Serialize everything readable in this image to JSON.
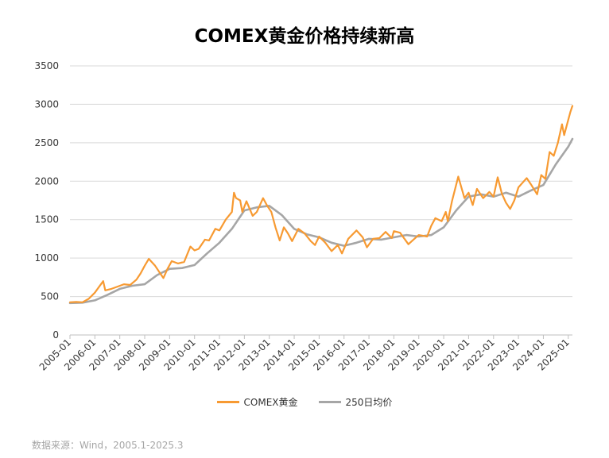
{
  "chart_data": {
    "type": "line",
    "title": "COMEX黄金价格持续新高",
    "ylim": [
      0,
      3500
    ],
    "yticks": [
      0,
      500,
      1000,
      1500,
      2000,
      2500,
      3000,
      3500
    ],
    "x_range": [
      "2005-01",
      "2025-03"
    ],
    "xticks": [
      "2005-01",
      "2006-01",
      "2007-01",
      "2008-01",
      "2009-01",
      "2010-01",
      "2011-01",
      "2012-01",
      "2013-01",
      "2014-01",
      "2015-01",
      "2016-01",
      "2017-01",
      "2018-01",
      "2019-01",
      "2020-01",
      "2021-01",
      "2022-01",
      "2023-01",
      "2024-01",
      "2025-01"
    ],
    "grid": true,
    "legend_position": "bottom",
    "series": [
      {
        "name": "COMEX黄金",
        "color": "#f79a32",
        "points": [
          [
            "2005-01",
            425
          ],
          [
            "2005-04",
            430
          ],
          [
            "2005-07",
            425
          ],
          [
            "2005-10",
            470
          ],
          [
            "2006-01",
            550
          ],
          [
            "2006-05",
            700
          ],
          [
            "2006-06",
            580
          ],
          [
            "2006-09",
            600
          ],
          [
            "2006-12",
            630
          ],
          [
            "2007-03",
            660
          ],
          [
            "2007-06",
            650
          ],
          [
            "2007-09",
            720
          ],
          [
            "2007-11",
            800
          ],
          [
            "2008-01",
            900
          ],
          [
            "2008-03",
            990
          ],
          [
            "2008-06",
            900
          ],
          [
            "2008-08",
            820
          ],
          [
            "2008-10",
            740
          ],
          [
            "2008-12",
            860
          ],
          [
            "2009-02",
            960
          ],
          [
            "2009-05",
            930
          ],
          [
            "2009-08",
            950
          ],
          [
            "2009-11",
            1150
          ],
          [
            "2010-01",
            1100
          ],
          [
            "2010-03",
            1120
          ],
          [
            "2010-06",
            1240
          ],
          [
            "2010-08",
            1230
          ],
          [
            "2010-11",
            1380
          ],
          [
            "2011-01",
            1360
          ],
          [
            "2011-04",
            1500
          ],
          [
            "2011-07",
            1600
          ],
          [
            "2011-08",
            1850
          ],
          [
            "2011-09",
            1780
          ],
          [
            "2011-11",
            1750
          ],
          [
            "2011-12",
            1600
          ],
          [
            "2012-02",
            1740
          ],
          [
            "2012-05",
            1550
          ],
          [
            "2012-07",
            1600
          ],
          [
            "2012-10",
            1780
          ],
          [
            "2012-12",
            1680
          ],
          [
            "2013-02",
            1600
          ],
          [
            "2013-04",
            1400
          ],
          [
            "2013-06",
            1230
          ],
          [
            "2013-08",
            1400
          ],
          [
            "2013-10",
            1320
          ],
          [
            "2013-12",
            1220
          ],
          [
            "2014-03",
            1380
          ],
          [
            "2014-06",
            1320
          ],
          [
            "2014-09",
            1220
          ],
          [
            "2014-11",
            1170
          ],
          [
            "2015-01",
            1280
          ],
          [
            "2015-04",
            1200
          ],
          [
            "2015-07",
            1090
          ],
          [
            "2015-10",
            1170
          ],
          [
            "2015-12",
            1060
          ],
          [
            "2016-03",
            1250
          ],
          [
            "2016-07",
            1360
          ],
          [
            "2016-10",
            1270
          ],
          [
            "2016-12",
            1140
          ],
          [
            "2017-03",
            1250
          ],
          [
            "2017-06",
            1260
          ],
          [
            "2017-09",
            1340
          ],
          [
            "2017-12",
            1260
          ],
          [
            "2018-01",
            1350
          ],
          [
            "2018-04",
            1330
          ],
          [
            "2018-08",
            1180
          ],
          [
            "2018-10",
            1230
          ],
          [
            "2019-01",
            1300
          ],
          [
            "2019-05",
            1280
          ],
          [
            "2019-07",
            1420
          ],
          [
            "2019-09",
            1520
          ],
          [
            "2019-12",
            1480
          ],
          [
            "2020-02",
            1600
          ],
          [
            "2020-03",
            1480
          ],
          [
            "2020-05",
            1740
          ],
          [
            "2020-08",
            2060
          ],
          [
            "2020-11",
            1780
          ],
          [
            "2021-01",
            1850
          ],
          [
            "2021-03",
            1690
          ],
          [
            "2021-05",
            1900
          ],
          [
            "2021-08",
            1780
          ],
          [
            "2021-11",
            1860
          ],
          [
            "2022-01",
            1800
          ],
          [
            "2022-03",
            2050
          ],
          [
            "2022-05",
            1840
          ],
          [
            "2022-07",
            1720
          ],
          [
            "2022-09",
            1640
          ],
          [
            "2022-11",
            1750
          ],
          [
            "2023-01",
            1920
          ],
          [
            "2023-03",
            1980
          ],
          [
            "2023-05",
            2040
          ],
          [
            "2023-07",
            1960
          ],
          [
            "2023-10",
            1830
          ],
          [
            "2023-12",
            2080
          ],
          [
            "2024-02",
            2030
          ],
          [
            "2024-04",
            2380
          ],
          [
            "2024-06",
            2330
          ],
          [
            "2024-08",
            2500
          ],
          [
            "2024-10",
            2740
          ],
          [
            "2024-11",
            2600
          ],
          [
            "2025-01",
            2800
          ],
          [
            "2025-02",
            2900
          ],
          [
            "2025-03",
            2980
          ]
        ]
      },
      {
        "name": "250日均价",
        "color": "#a6a6a6",
        "points": [
          [
            "2005-01",
            415
          ],
          [
            "2005-07",
            420
          ],
          [
            "2006-01",
            450
          ],
          [
            "2006-07",
            520
          ],
          [
            "2007-01",
            600
          ],
          [
            "2007-07",
            640
          ],
          [
            "2008-01",
            660
          ],
          [
            "2008-07",
            780
          ],
          [
            "2009-01",
            860
          ],
          [
            "2009-07",
            870
          ],
          [
            "2010-01",
            910
          ],
          [
            "2010-07",
            1060
          ],
          [
            "2011-01",
            1200
          ],
          [
            "2011-07",
            1380
          ],
          [
            "2012-01",
            1620
          ],
          [
            "2012-07",
            1660
          ],
          [
            "2013-01",
            1680
          ],
          [
            "2013-07",
            1560
          ],
          [
            "2014-01",
            1380
          ],
          [
            "2014-07",
            1310
          ],
          [
            "2015-01",
            1270
          ],
          [
            "2015-07",
            1200
          ],
          [
            "2016-01",
            1160
          ],
          [
            "2016-07",
            1200
          ],
          [
            "2017-01",
            1250
          ],
          [
            "2017-07",
            1240
          ],
          [
            "2018-01",
            1270
          ],
          [
            "2018-07",
            1300
          ],
          [
            "2019-01",
            1280
          ],
          [
            "2019-07",
            1300
          ],
          [
            "2020-01",
            1400
          ],
          [
            "2020-07",
            1620
          ],
          [
            "2021-01",
            1800
          ],
          [
            "2021-07",
            1830
          ],
          [
            "2022-01",
            1800
          ],
          [
            "2022-07",
            1850
          ],
          [
            "2023-01",
            1800
          ],
          [
            "2023-07",
            1880
          ],
          [
            "2024-01",
            1950
          ],
          [
            "2024-07",
            2220
          ],
          [
            "2025-01",
            2450
          ],
          [
            "2025-03",
            2550
          ]
        ]
      }
    ]
  },
  "legend": {
    "items": [
      {
        "label": "COMEX黄金",
        "color": "#f79a32"
      },
      {
        "label": "250日均价",
        "color": "#a6a6a6"
      }
    ]
  },
  "source": "数据来源：Wind，2005.1-2025.3"
}
